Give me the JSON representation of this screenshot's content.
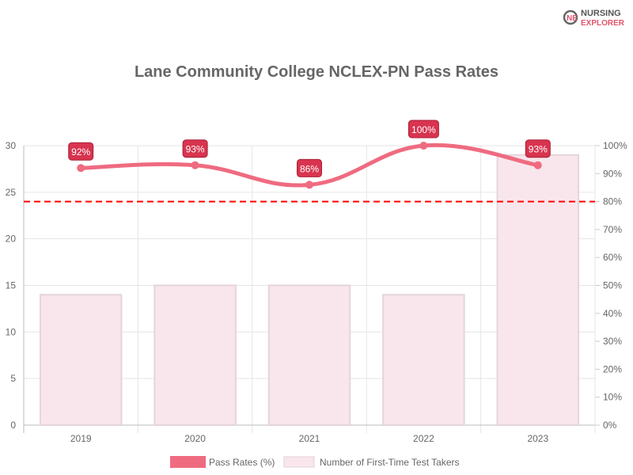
{
  "logo": {
    "line1": "NURSING",
    "line2": "EXPLORER"
  },
  "chart_data": {
    "type": "bar+line",
    "title": "Lane Community College NCLEX-PN Pass Rates",
    "categories": [
      "2019",
      "2020",
      "2021",
      "2022",
      "2023"
    ],
    "series": [
      {
        "name": "Pass Rates (%)",
        "type": "line",
        "axis": "right",
        "values": [
          92,
          93,
          86,
          100,
          93
        ],
        "labels": [
          "92%",
          "93%",
          "86%",
          "100%",
          "93%"
        ],
        "color": "#ef6b80"
      },
      {
        "name": "Number of First-Time Test Takers",
        "type": "bar",
        "axis": "left",
        "values": [
          14,
          15,
          15,
          14,
          29
        ],
        "color": "#f8e6ec"
      }
    ],
    "reference_line": {
      "value": 80,
      "axis": "right",
      "style": "dashed",
      "color": "#ff0000"
    },
    "y_left": {
      "ylim": [
        0,
        30
      ],
      "ticks": [
        "0",
        "5",
        "10",
        "15",
        "20",
        "25",
        "30"
      ]
    },
    "y_right": {
      "ylim": [
        0,
        100
      ],
      "ticks": [
        "0%",
        "10%",
        "20%",
        "30%",
        "40%",
        "50%",
        "60%",
        "70%",
        "80%",
        "90%",
        "100%"
      ]
    },
    "grid": true,
    "legend": "bottom"
  }
}
